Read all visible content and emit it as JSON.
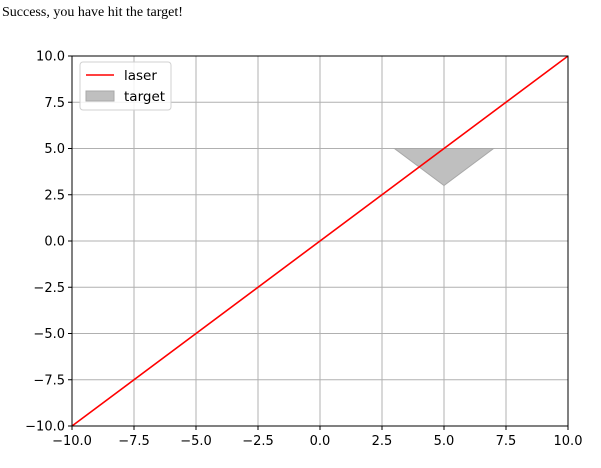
{
  "message": "Success, you have hit the target!",
  "chart_data": {
    "type": "line",
    "title": "",
    "xlabel": "",
    "ylabel": "",
    "xlim": [
      -10,
      10
    ],
    "ylim": [
      -10,
      10
    ],
    "grid": true,
    "legend_position": "upper-left",
    "x_ticks": [
      -10,
      -7.5,
      -5,
      -2.5,
      0,
      2.5,
      5,
      7.5,
      10
    ],
    "y_ticks": [
      -10,
      -7.5,
      -5,
      -2.5,
      0,
      2.5,
      5,
      7.5,
      10
    ],
    "x_tick_labels": [
      "−10.0",
      "−7.5",
      "−5.0",
      "−2.5",
      "0.0",
      "2.5",
      "5.0",
      "7.5",
      "10.0"
    ],
    "y_tick_labels": [
      "−10.0",
      "−7.5",
      "−5.0",
      "−2.5",
      "0.0",
      "2.5",
      "5.0",
      "7.5",
      "10.0"
    ],
    "series": [
      {
        "name": "laser",
        "kind": "line",
        "color": "#ff0000",
        "x": [
          -10,
          10
        ],
        "y": [
          -10,
          10
        ]
      },
      {
        "name": "target",
        "kind": "polygon",
        "color": "#bfbfbf",
        "edge_color": "#a8a8a8",
        "x": [
          3,
          7,
          5
        ],
        "y": [
          5,
          5,
          3
        ]
      }
    ]
  }
}
